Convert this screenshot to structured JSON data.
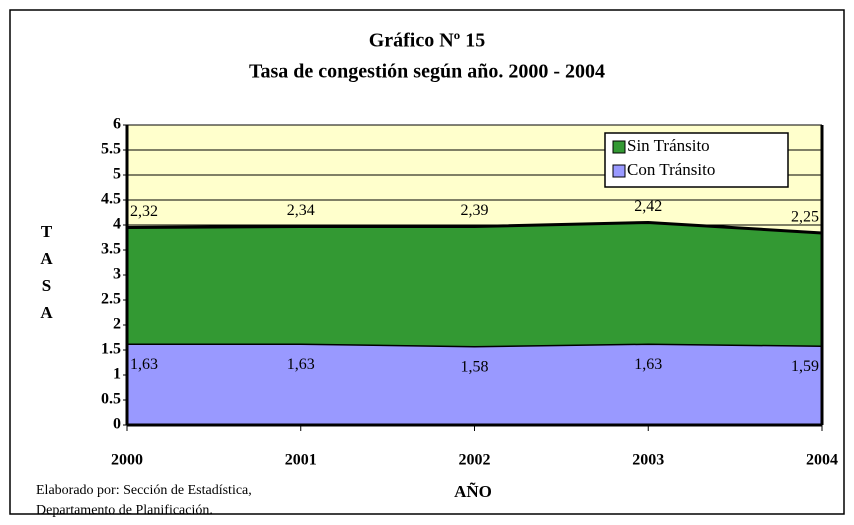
{
  "chart_data": {
    "type": "stacked_area",
    "title": "Gráfico Nº 15",
    "subtitle": "Tasa de congestión según año. 2000 - 2004",
    "x_label": "AÑO",
    "y_label": "TASA",
    "note": [
      "Elaborado por: Sección de Estadística,",
      "Departamento de Planificación."
    ],
    "categories": [
      "2000",
      "2001",
      "2002",
      "2003",
      "2004"
    ],
    "series": [
      {
        "name": "Con Tránsito",
        "color": "#9999ff",
        "values": [
          1.63,
          1.63,
          1.58,
          1.63,
          1.59
        ],
        "value_labels": [
          "1,63",
          "1,63",
          "1,58",
          "1,63",
          "1,59"
        ]
      },
      {
        "name": "Sin Tránsito",
        "color": "#339933",
        "values": [
          2.32,
          2.34,
          2.39,
          2.42,
          2.25
        ],
        "value_labels": [
          "2,32",
          "2,34",
          "2,39",
          "2,42",
          "2,25"
        ]
      }
    ],
    "ylim": [
      0,
      6
    ],
    "yticks": [
      0,
      0.5,
      1,
      1.5,
      2,
      2.5,
      3,
      3.5,
      4,
      4.5,
      5,
      5.5,
      6
    ],
    "grid": true,
    "legend": "top-right"
  }
}
